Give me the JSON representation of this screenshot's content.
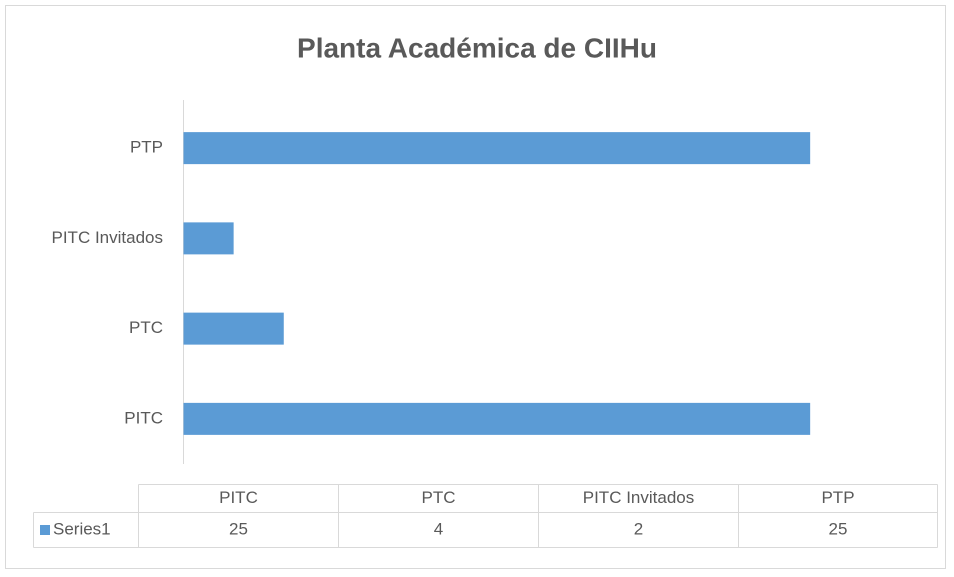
{
  "chart_data": {
    "type": "bar",
    "orientation": "horizontal",
    "title": "Planta Académica de CIIHu",
    "categories": [
      "PITC",
      "PTC",
      "PITC Invitados",
      "PTP"
    ],
    "series": [
      {
        "name": "Series1",
        "color": "#5b9bd5",
        "values": [
          25,
          4,
          2,
          25
        ]
      }
    ],
    "xlim": [
      0,
      30
    ],
    "data_table": true
  }
}
